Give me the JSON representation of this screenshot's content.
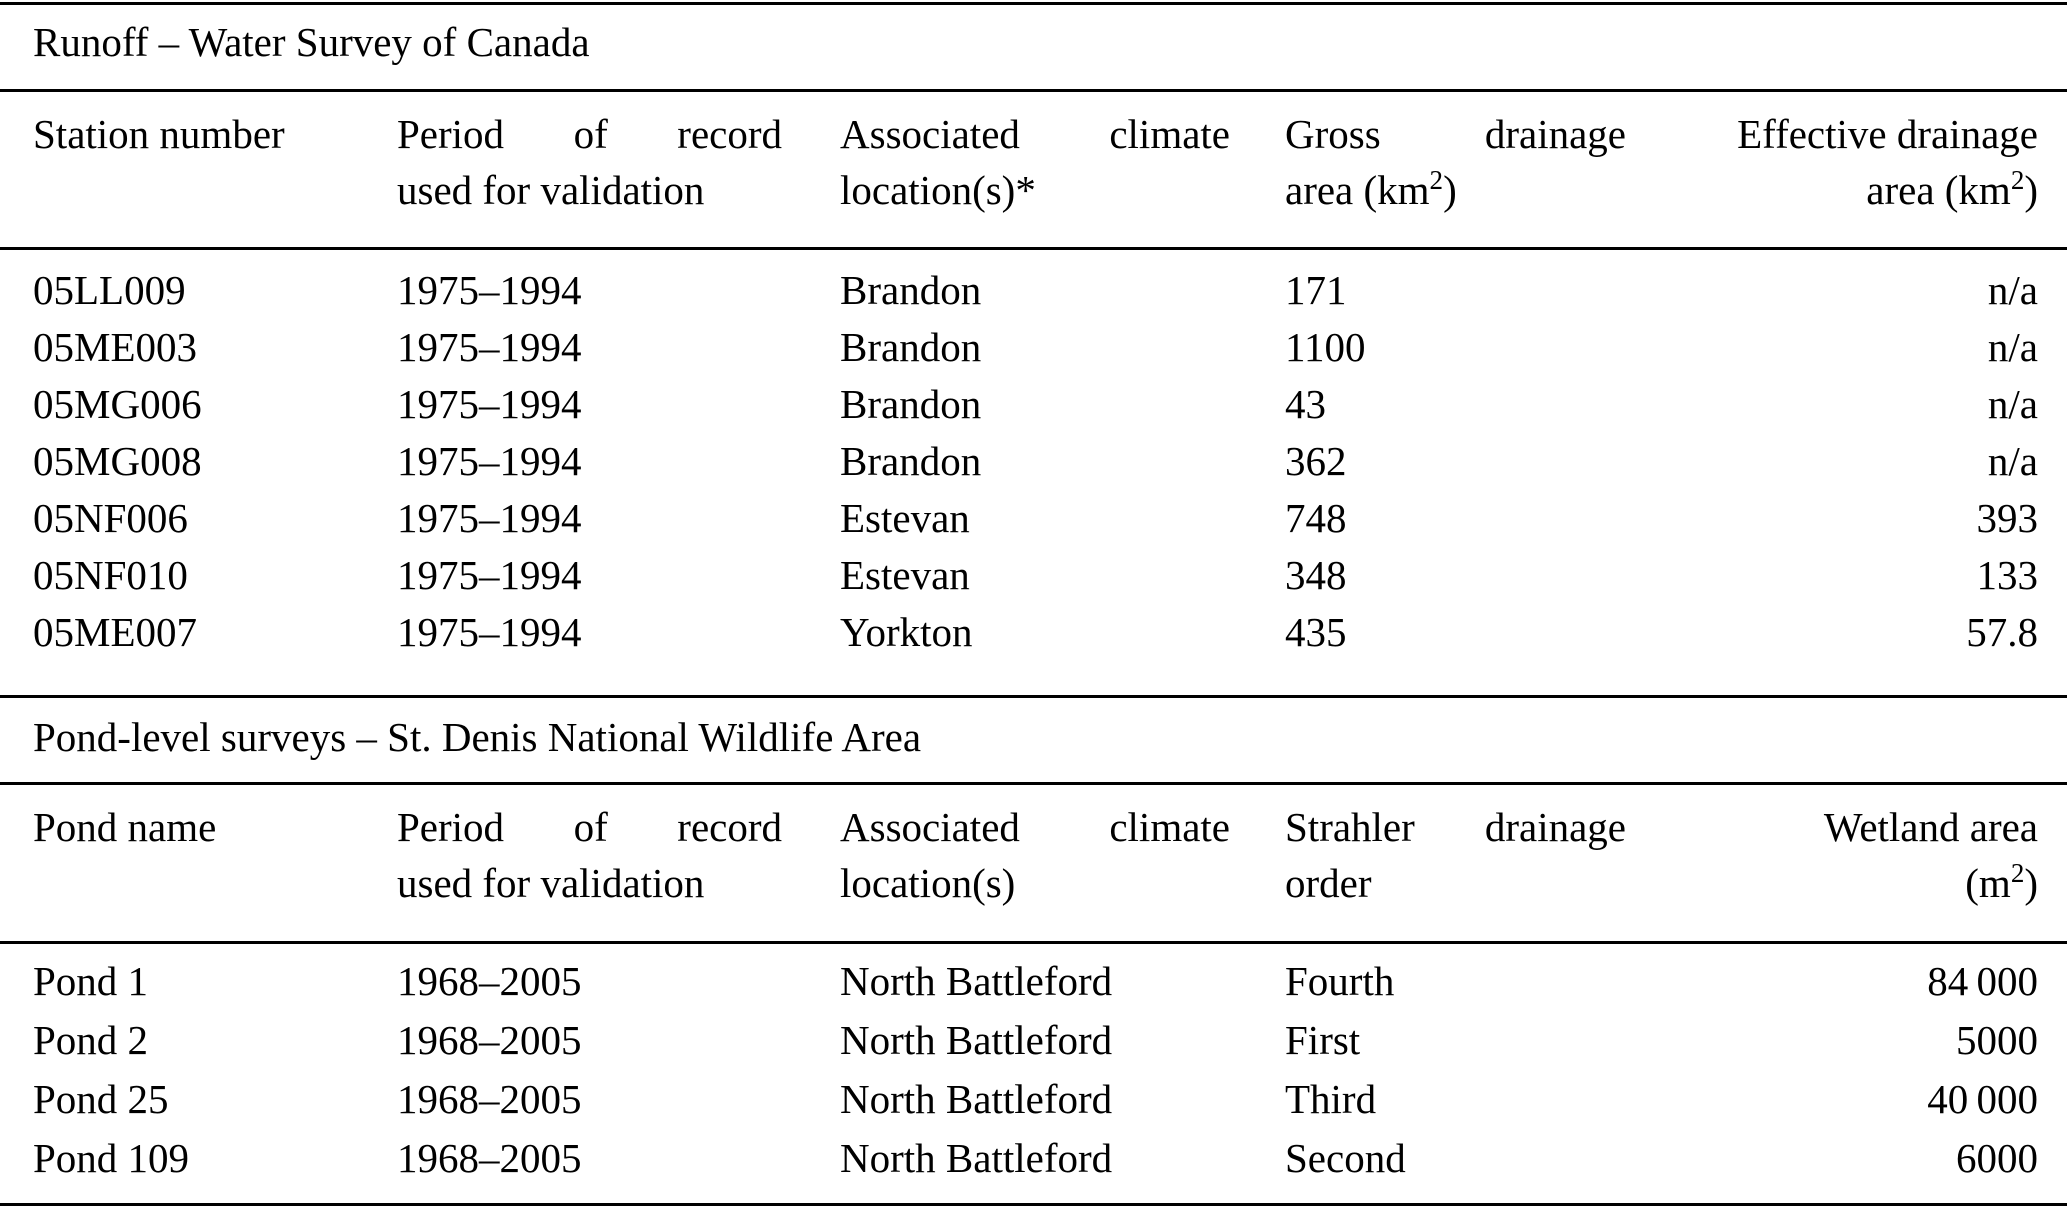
{
  "table1": {
    "title": "Runoff – Water Survey of Canada",
    "header": {
      "col1": "Station number",
      "period_line1": "Period of record",
      "period_line2": "used for validation",
      "climate_line1": "Associated climate",
      "climate_line2": "location(s)*",
      "col4_line1": "Gross drainage",
      "col4_line2_pre": "area (km",
      "col4_sup": "2",
      "col4_line2_post": ")",
      "col5_line1": "Effective drainage",
      "col5_line2_pre": "area (km",
      "col5_sup": "2",
      "col5_line2_post": ")"
    },
    "rows": [
      [
        "05LL009",
        "1975–1994",
        "Brandon",
        "171",
        "n/a"
      ],
      [
        "05ME003",
        "1975–1994",
        "Brandon",
        "1100",
        "n/a"
      ],
      [
        "05MG006",
        "1975–1994",
        "Brandon",
        "43",
        "n/a"
      ],
      [
        "05MG008",
        "1975–1994",
        "Brandon",
        "362",
        "n/a"
      ],
      [
        "05NF006",
        "1975–1994",
        "Estevan",
        "748",
        "393"
      ],
      [
        "05NF010",
        "1975–1994",
        "Estevan",
        "348",
        "133"
      ],
      [
        "05ME007",
        "1975–1994",
        "Yorkton",
        "435",
        "57.8"
      ]
    ]
  },
  "table2": {
    "title": "Pond-level surveys – St. Denis National Wildlife Area",
    "header": {
      "col1": "Pond name",
      "period_line1": "Period of record",
      "period_line2": "used for validation",
      "climate_line1": "Associated climate",
      "climate_line2": "location(s)",
      "col4_line1": "Strahler drainage",
      "col4_line2": "order",
      "col5_line1": "Wetland area",
      "col5_line2_pre": "(m",
      "col5_sup": "2",
      "col5_line2_post": ")"
    },
    "rows": [
      [
        "Pond 1",
        "1968–2005",
        "North Battleford",
        "Fourth",
        "84 000"
      ],
      [
        "Pond 2",
        "1968–2005",
        "North Battleford",
        "First",
        "5000"
      ],
      [
        "Pond 25",
        "1968–2005",
        "North Battleford",
        "Third",
        "40 000"
      ],
      [
        "Pond 109",
        "1968–2005",
        "North Battleford",
        "Second",
        "6000"
      ]
    ]
  }
}
